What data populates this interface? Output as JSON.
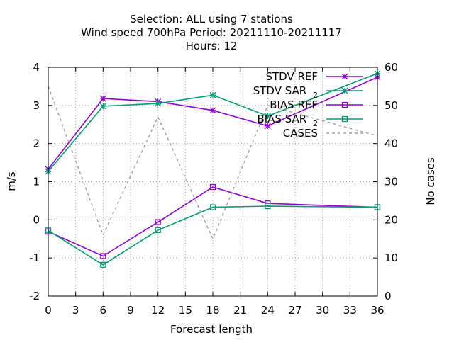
{
  "chart_data": {
    "type": "line",
    "title_lines": [
      "Selection: ALL using     7 stations",
      "Wind speed 700hPa   Period: 20211110-20211117",
      "Hours:  12"
    ],
    "xlabel": "Forecast length",
    "ylabel": "m/s",
    "y2label": "No cases",
    "xlim": [
      0,
      36
    ],
    "ylim": [
      -2,
      4
    ],
    "y2lim": [
      0,
      60
    ],
    "xticks": [
      0,
      3,
      6,
      9,
      12,
      15,
      18,
      21,
      24,
      27,
      30,
      33,
      36
    ],
    "yticks": [
      -2,
      -1,
      0,
      1,
      2,
      3,
      4
    ],
    "y2ticks": [
      0,
      10,
      20,
      30,
      40,
      50,
      60
    ],
    "grid": true,
    "legend_position": "top-right",
    "x": [
      0,
      6,
      12,
      18,
      24,
      36
    ],
    "series": [
      {
        "name": "STDV REF",
        "color": "#9400d3",
        "marker": "star",
        "axis": "y1",
        "values": [
          1.33,
          3.18,
          3.1,
          2.87,
          2.46,
          3.74
        ]
      },
      {
        "name": "STDV SAR",
        "name_sub": "2",
        "color": "#009e73",
        "marker": "star",
        "axis": "y1",
        "values": [
          1.27,
          2.98,
          3.05,
          3.27,
          2.72,
          3.84
        ]
      },
      {
        "name": "BIAS REF",
        "color": "#9400d3",
        "marker": "square",
        "axis": "y1",
        "values": [
          -0.31,
          -0.95,
          -0.06,
          0.86,
          0.43,
          0.33
        ]
      },
      {
        "name": "BIAS SAR",
        "name_sub": "2",
        "color": "#009e73",
        "marker": "square",
        "axis": "y1",
        "values": [
          -0.28,
          -1.18,
          -0.27,
          0.33,
          0.36,
          0.33
        ]
      },
      {
        "name": "CASES",
        "color": "#a0a0a0",
        "marker": "none",
        "dashed": true,
        "axis": "y2",
        "values": [
          55,
          16,
          47,
          15,
          50,
          42
        ]
      }
    ]
  }
}
